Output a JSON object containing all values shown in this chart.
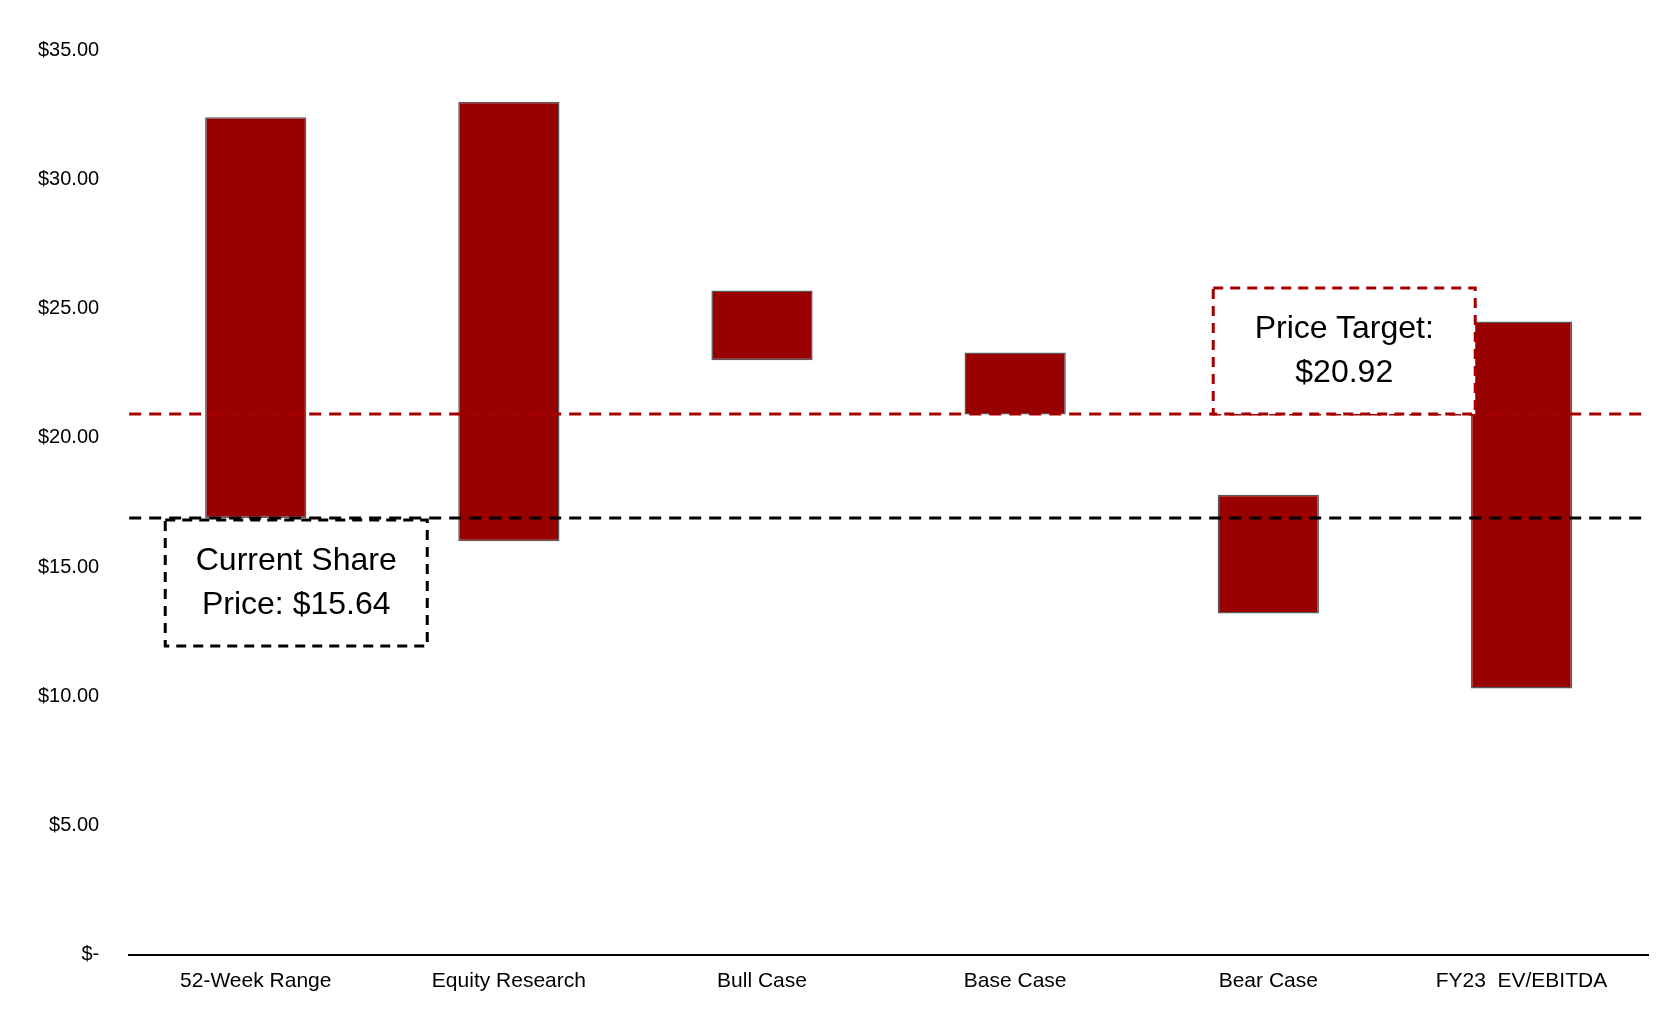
{
  "chart_data": {
    "type": "bar",
    "categories": [
      "52-Week Range",
      "Equity Research",
      "Bull Case",
      "Base Case",
      "Bear Case",
      "FY23  EV/EBITDA"
    ],
    "base": [
      16.9,
      16.0,
      23.0,
      20.9,
      13.2,
      10.3
    ],
    "values": [
      15.5,
      17.0,
      2.7,
      2.4,
      4.6,
      14.2
    ],
    "color": "#990000",
    "ylim": [
      0,
      35
    ],
    "yticks": [
      {
        "value": 0,
        "label": "$-"
      },
      {
        "value": 5,
        "label": "$5.00"
      },
      {
        "value": 10,
        "label": "$10.00"
      },
      {
        "value": 15,
        "label": "$15.00"
      },
      {
        "value": 20,
        "label": "$20.00"
      },
      {
        "value": 25,
        "label": "$25.00"
      },
      {
        "value": 30,
        "label": "$30.00"
      },
      {
        "value": 35,
        "label": "$35.00"
      }
    ],
    "grid": false,
    "legend": false,
    "ref_lines": [
      {
        "axis": "y",
        "value": 16.9,
        "color": "#000000",
        "line_style": "dashed"
      },
      {
        "axis": "y",
        "value": 20.92,
        "label": "Price Target: $20.92",
        "color": "#a50000",
        "line_style": "dashed"
      }
    ],
    "annotations": [
      "Current Share Price: $15.64"
    ]
  }
}
